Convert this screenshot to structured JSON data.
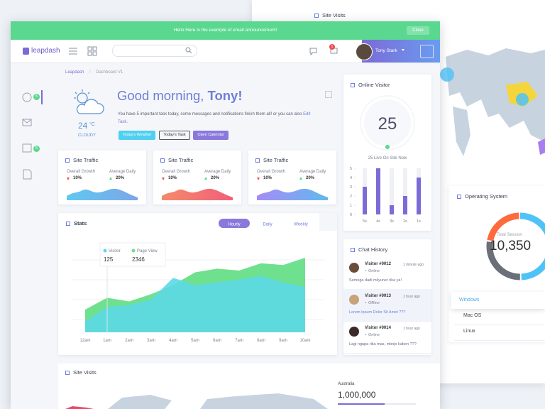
{
  "announcement": {
    "message": "Hello Here is the example of email announcement!",
    "close": "Close"
  },
  "navbar": {
    "brand": "leapdash",
    "notifications": 1,
    "user": "Tony Stark"
  },
  "sidebar": {
    "badges": [
      5,
      5
    ]
  },
  "breadcrumb": [
    "Leapdash",
    "Dashboard V1"
  ],
  "weather": {
    "temperature": 24,
    "unit": "°C",
    "condition": "CLOUDY"
  },
  "greeting": {
    "salutation": "Good morning,",
    "name": "Tony!",
    "message": "You have 5 important task today, some messages and notifications finish them all! or you can also",
    "link": "Edit Task.",
    "buttons": [
      "Today's Weather",
      "Today's Task",
      "Open Calendar"
    ]
  },
  "traffic_cards": [
    {
      "title": "Site Traffic",
      "overall_label": "Overall Growth",
      "overall": "10%",
      "daily_label": "Average Daily",
      "daily": "20%"
    },
    {
      "title": "Site Traffic",
      "overall_label": "Overall Growth",
      "overall": "10%",
      "daily_label": "Average Daily",
      "daily": "20%"
    },
    {
      "title": "Site Traffic",
      "overall_label": "Overall Growth",
      "overall": "10%",
      "daily_label": "Average Daily",
      "daily": "20%"
    }
  ],
  "stats": {
    "title": "Stats",
    "tabs": [
      "Hourly",
      "Daily",
      "Weekly"
    ],
    "x": [
      "12am",
      "1am",
      "2am",
      "3am",
      "4am",
      "5am",
      "6am",
      "7am",
      "8am",
      "9am",
      "10am"
    ],
    "ylim": [
      0,
      100
    ],
    "series": [
      {
        "name": "Visitor",
        "color": "#5cd9e6",
        "values": [
          12,
          28,
          30,
          36,
          60,
          52,
          55,
          58,
          62,
          55,
          50
        ]
      },
      {
        "name": "Page View",
        "color": "#6ee08e",
        "values": [
          25,
          38,
          34,
          42,
          52,
          66,
          70,
          68,
          76,
          74,
          82
        ]
      }
    ],
    "tooltip": {
      "values": [
        125,
        2346
      ]
    }
  },
  "online_visitor": {
    "title": "Online Visitor",
    "count": 25,
    "caption": "25 Live On Site Now",
    "chart": {
      "type": "bar",
      "categories": [
        "5s",
        "4s",
        "3s",
        "2s",
        "1s"
      ],
      "values": [
        3,
        5,
        1,
        2,
        4
      ],
      "ylim": [
        0,
        5
      ],
      "yticks": [
        0,
        1,
        2,
        3,
        4,
        5
      ],
      "color": "#7b6bd6"
    }
  },
  "chat_history": {
    "title": "Chat History",
    "messages": [
      {
        "name": "Visitor #0012",
        "status": "Online",
        "time": "1 minute ago",
        "text": "Semoga dadi milyuner rika ya!"
      },
      {
        "name": "Visitor #0013",
        "status": "Offline",
        "time": "1 hour ago",
        "text": "Lorem Ipsum Dolor Sit Amet ???"
      },
      {
        "name": "Visitor #0014",
        "status": "Online",
        "time": "1 hour ago",
        "text": "Lagi ngapa rika mas, mbojo kaben ???"
      }
    ]
  },
  "site_visits": {
    "title": "Site Visits",
    "country": "Australia",
    "visits": {
      "value": 1000000,
      "label": "1,000,000"
    }
  },
  "back_panel": {
    "title": "Site Visits",
    "operating_system": {
      "title": "Operating System",
      "total_label": "Total Session",
      "total": {
        "value": 10350,
        "label": "10,350"
      },
      "systems": [
        {
          "name": "Windows",
          "value": 50,
          "color": "#4fc3f7"
        },
        {
          "name": "Mac OS",
          "value": 28,
          "color": "#6b6f77"
        },
        {
          "name": "Linux",
          "value": 22,
          "color": "#ff6a3d"
        }
      ]
    }
  }
}
